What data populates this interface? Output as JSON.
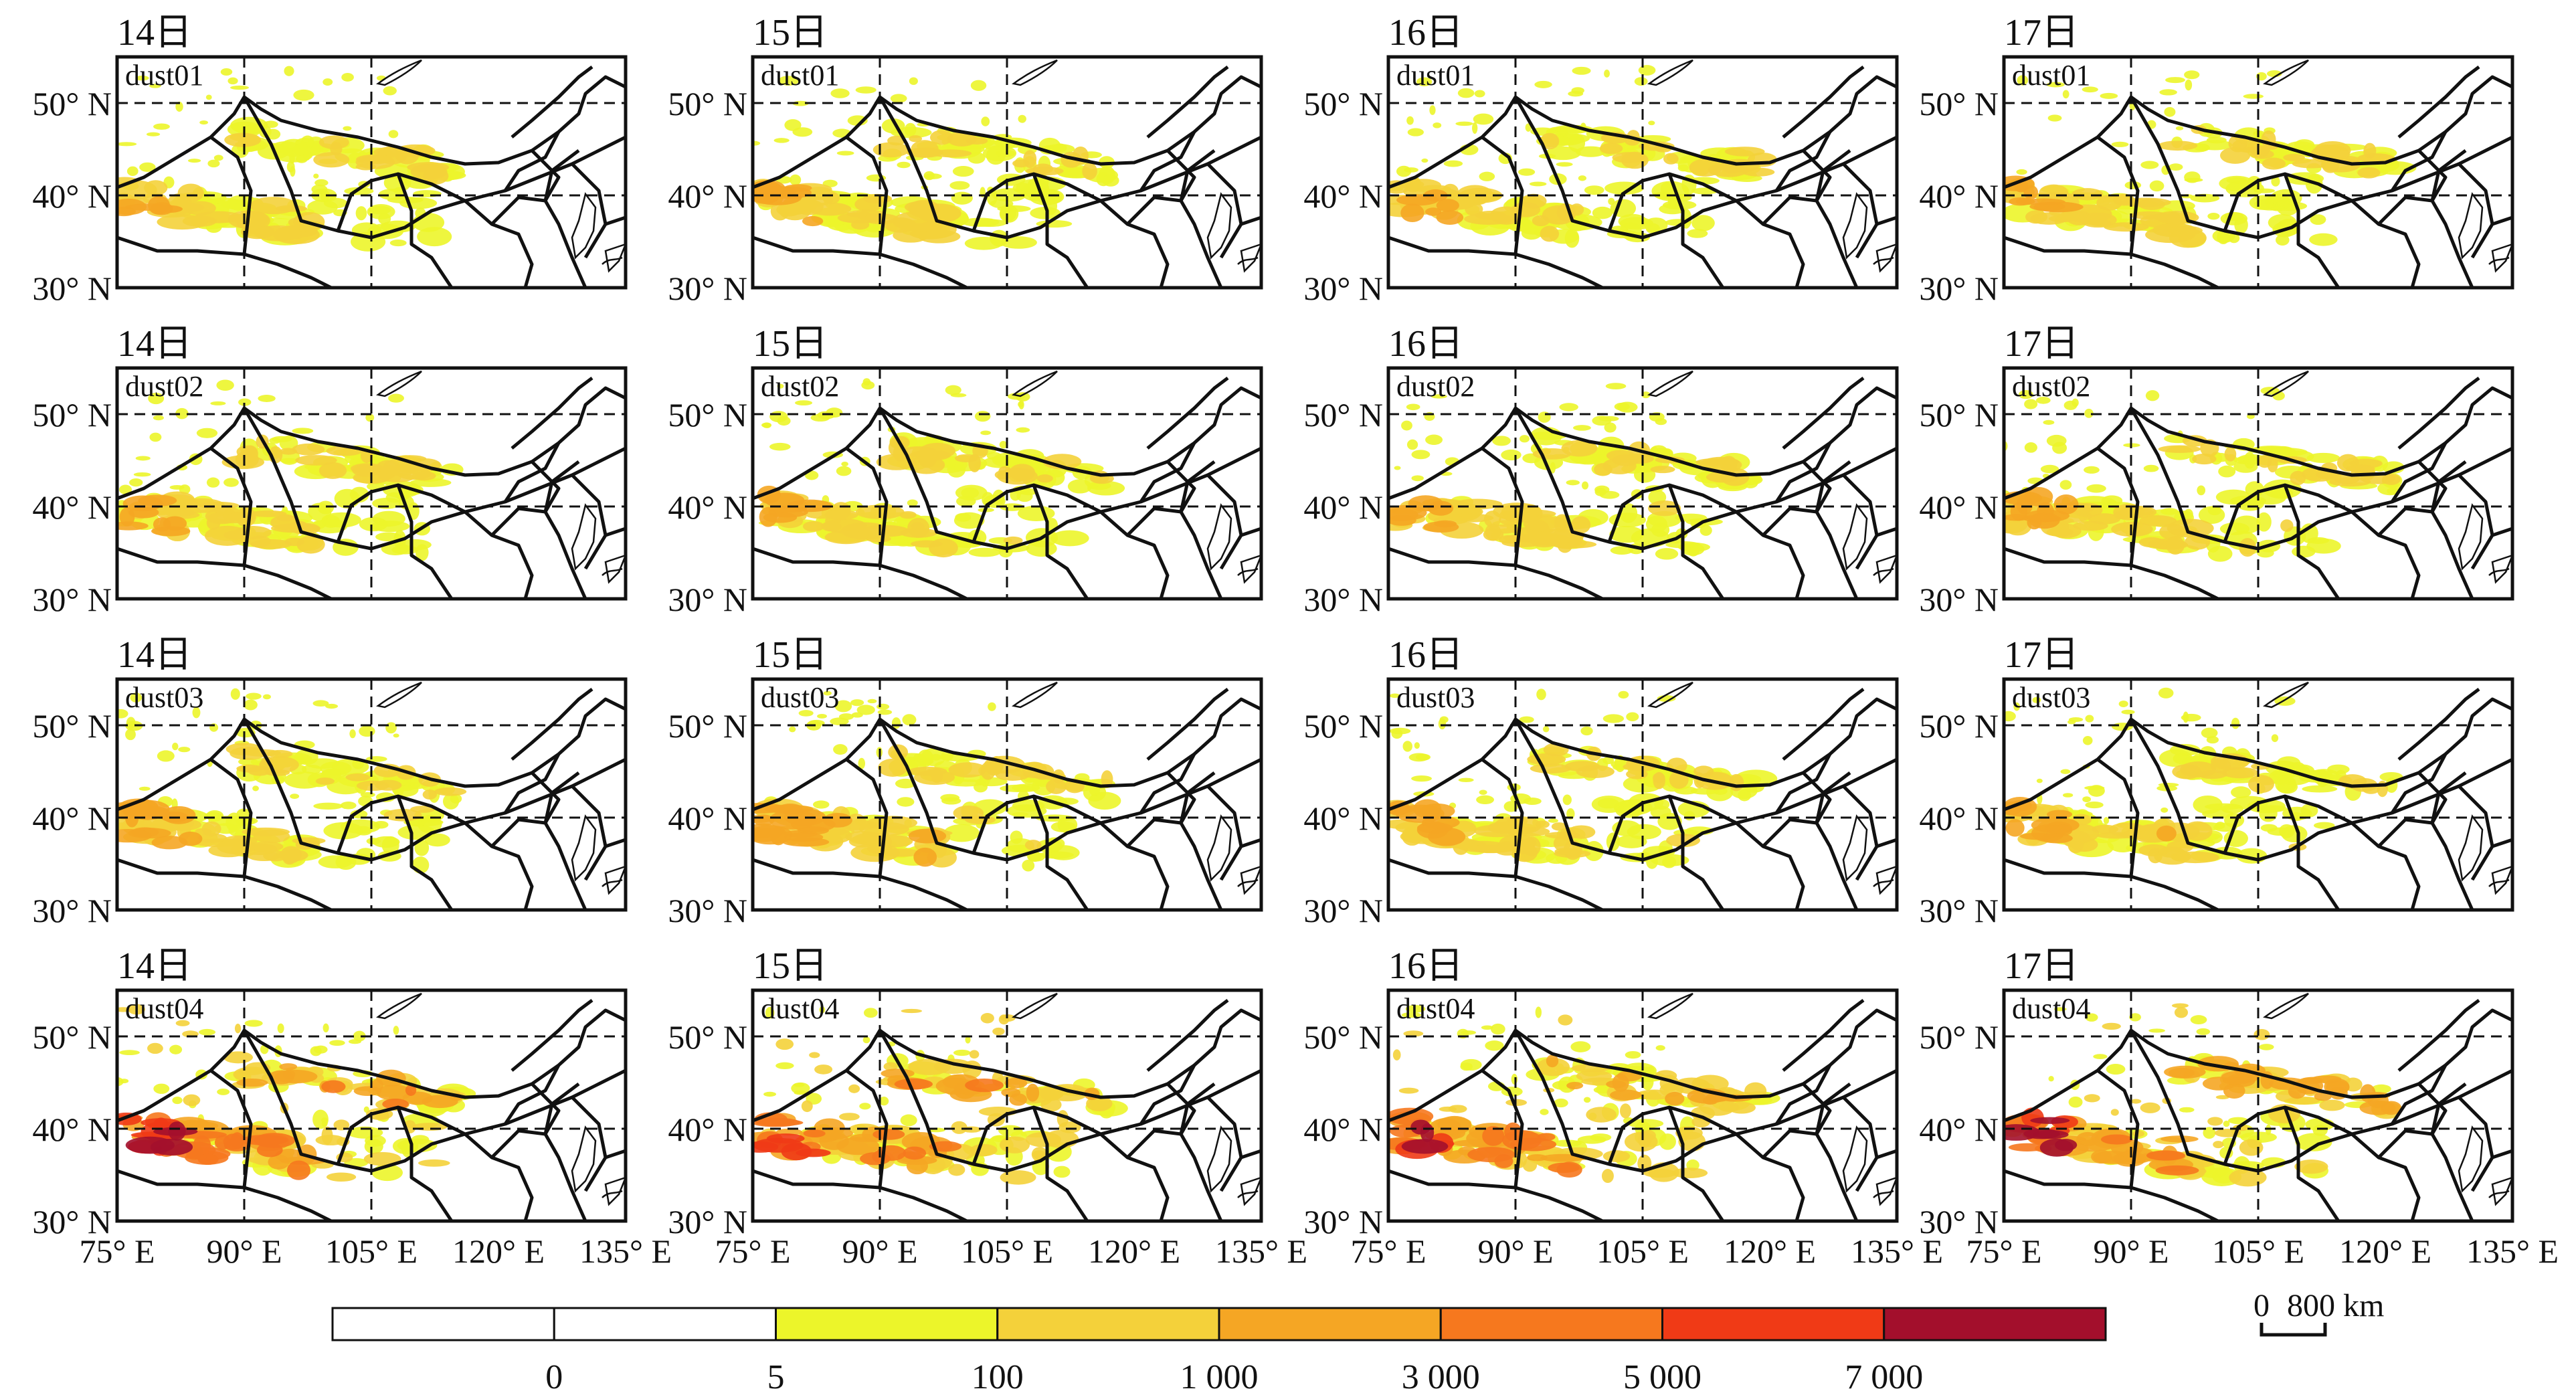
{
  "species": [
    "dust01",
    "dust02",
    "dust03",
    "dust04"
  ],
  "days": [
    "14日",
    "15日",
    "16日",
    "17日"
  ],
  "lat_labels": [
    "50° N",
    "40° N",
    "30° N"
  ],
  "lon_labels": [
    "75° E",
    "90° E",
    "105° E",
    "120° E",
    "135° E"
  ],
  "map_extent": {
    "lon": [
      75,
      135
    ],
    "lat": [
      30,
      55
    ]
  },
  "gridlines": {
    "lon": [
      90,
      105
    ],
    "lat": [
      40,
      50
    ],
    "style": "dashed"
  },
  "colorbar": {
    "ticks": [
      "0",
      "5",
      "100",
      "1 000",
      "3 000",
      "5 000",
      "7 000"
    ],
    "colors": [
      "#ffffff",
      "#ffffff",
      "#ecf52a",
      "#f4d13a",
      "#f5a624",
      "#f6781e",
      "#f03a16",
      "#a30f2c"
    ]
  },
  "scale_bar": {
    "label_start": "0",
    "label_end": "800 km"
  }
}
